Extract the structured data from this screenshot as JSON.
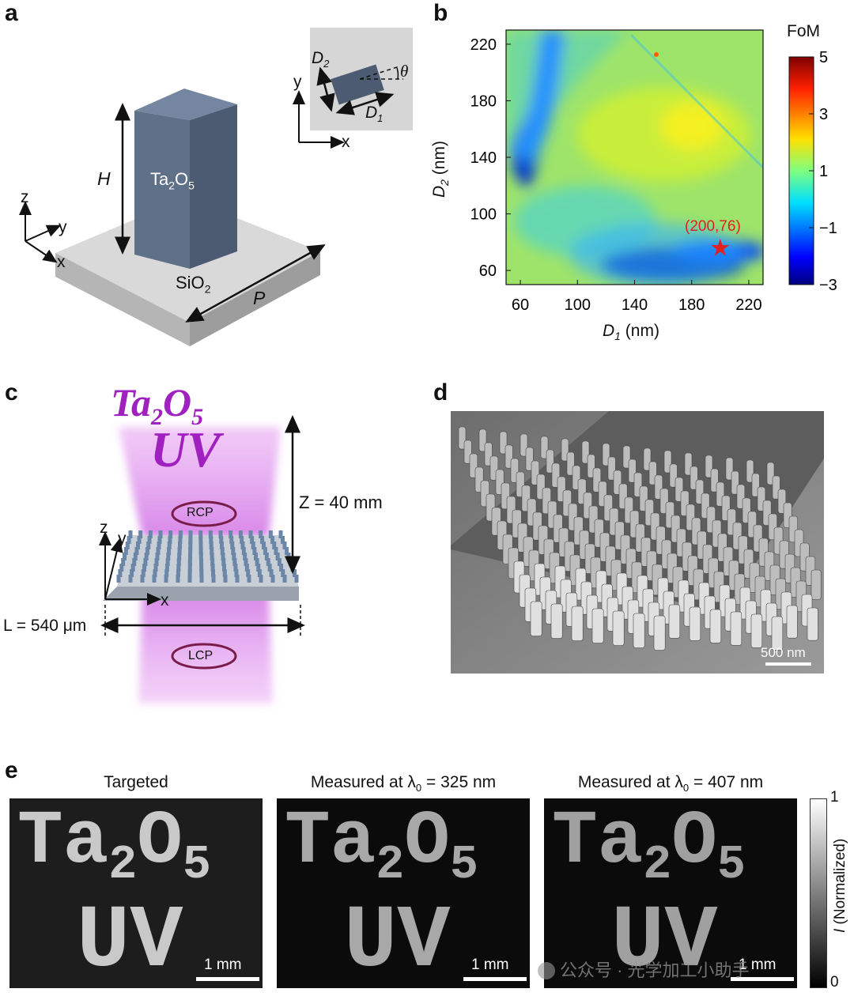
{
  "panel_labels": {
    "a": "a",
    "b": "b",
    "c": "c",
    "d": "d",
    "e": "e"
  },
  "panel_a": {
    "material": "Ta",
    "material_sub1": "2",
    "material_o": "O",
    "material_sub2": "5",
    "substrate": "SiO",
    "substrate_sub": "2",
    "height_label": "H",
    "period_label": "P",
    "axis_z": "z",
    "axis_y": "y",
    "axis_x": "x",
    "inset": {
      "d2": "D",
      "d2_sub": "2",
      "d1": "D",
      "d1_sub": "1",
      "theta": "θ",
      "axis_y": "y",
      "axis_x": "x"
    }
  },
  "panel_b": {
    "colorbar_title": "FoM",
    "colorbar_ticks": [
      "5",
      "3",
      "1",
      "−1",
      "−3"
    ],
    "annotation": "(200,76)",
    "accent_color": "#e32020"
  },
  "chart_data": {
    "type": "heatmap",
    "title": "",
    "xlabel": "D1 (nm)",
    "ylabel": "D2 (nm)",
    "xticks": [
      "60",
      "100",
      "140",
      "180",
      "220"
    ],
    "yticks": [
      "60",
      "100",
      "140",
      "180",
      "220"
    ],
    "xlim": [
      50,
      230
    ],
    "ylim": [
      50,
      230
    ],
    "colorbar": {
      "label": "FoM",
      "range": [
        -3,
        5
      ]
    },
    "marker": {
      "x": 200,
      "y": 76,
      "label": "(200,76)",
      "symbol": "star"
    }
  },
  "panel_c": {
    "title_ta": "Ta",
    "title_sub1": "2",
    "title_o": "O",
    "title_sub2": "5",
    "title_uv": "UV",
    "distance": "Z = 40 mm",
    "rcp": "RCP",
    "lcp": "LCP",
    "length": "L = 540 μm",
    "axis_z": "z",
    "axis_y": "y",
    "axis_x": "x",
    "accent_color": "#a020c0"
  },
  "panel_d": {
    "scale": "500 nm"
  },
  "panel_e": {
    "titles": [
      "Targeted",
      "Measured at λ",
      "Measured at λ"
    ],
    "lambda_sub": "0",
    "lambda_values": [
      " = 325 nm",
      " = 407 nm"
    ],
    "image_text_ta": "Ta",
    "image_text_sub1": "2",
    "image_text_o": "O",
    "image_text_sub2": "5",
    "image_text_uv": "UV",
    "scale": "1 mm",
    "colorbar_max": "1",
    "colorbar_min": "0",
    "colorbar_label_i": "I",
    "colorbar_label_rest": " (Normalized)",
    "watermark": "公众号 · 光学加工小助手"
  }
}
